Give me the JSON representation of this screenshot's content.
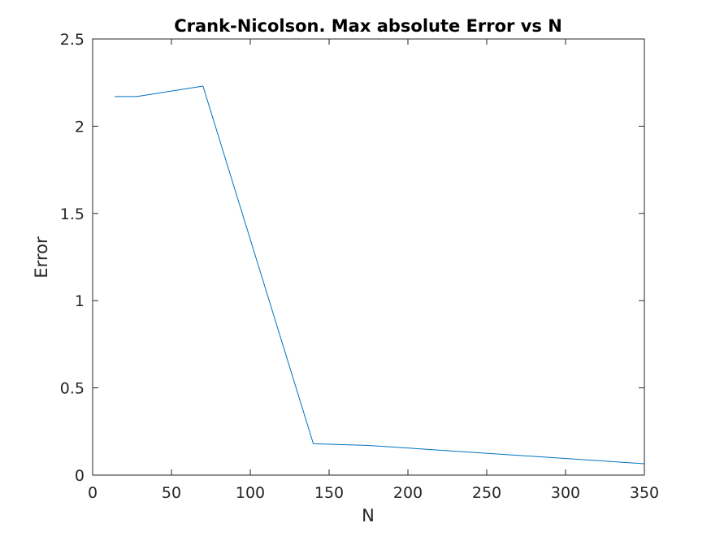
{
  "chart_data": {
    "type": "line",
    "title": "Crank-Nicolson. Max absolute Error vs N",
    "xlabel": "N",
    "ylabel": "Error",
    "xlim": [
      0,
      350
    ],
    "ylim": [
      0,
      2.5
    ],
    "xticks": [
      0,
      50,
      100,
      150,
      200,
      250,
      300,
      350
    ],
    "yticks": [
      0,
      0.5,
      1,
      1.5,
      2,
      2.5
    ],
    "xtick_labels": [
      "0",
      "50",
      "100",
      "150",
      "200",
      "250",
      "300",
      "350"
    ],
    "ytick_labels": [
      "0",
      "0.5",
      "1",
      "1.5",
      "2",
      "2.5"
    ],
    "grid": false,
    "series": [
      {
        "x": [
          14,
          28,
          70,
          140,
          175,
          350
        ],
        "y": [
          2.17,
          2.17,
          2.23,
          0.18,
          0.17,
          0.065
        ],
        "color": "#0072BD"
      }
    ]
  }
}
